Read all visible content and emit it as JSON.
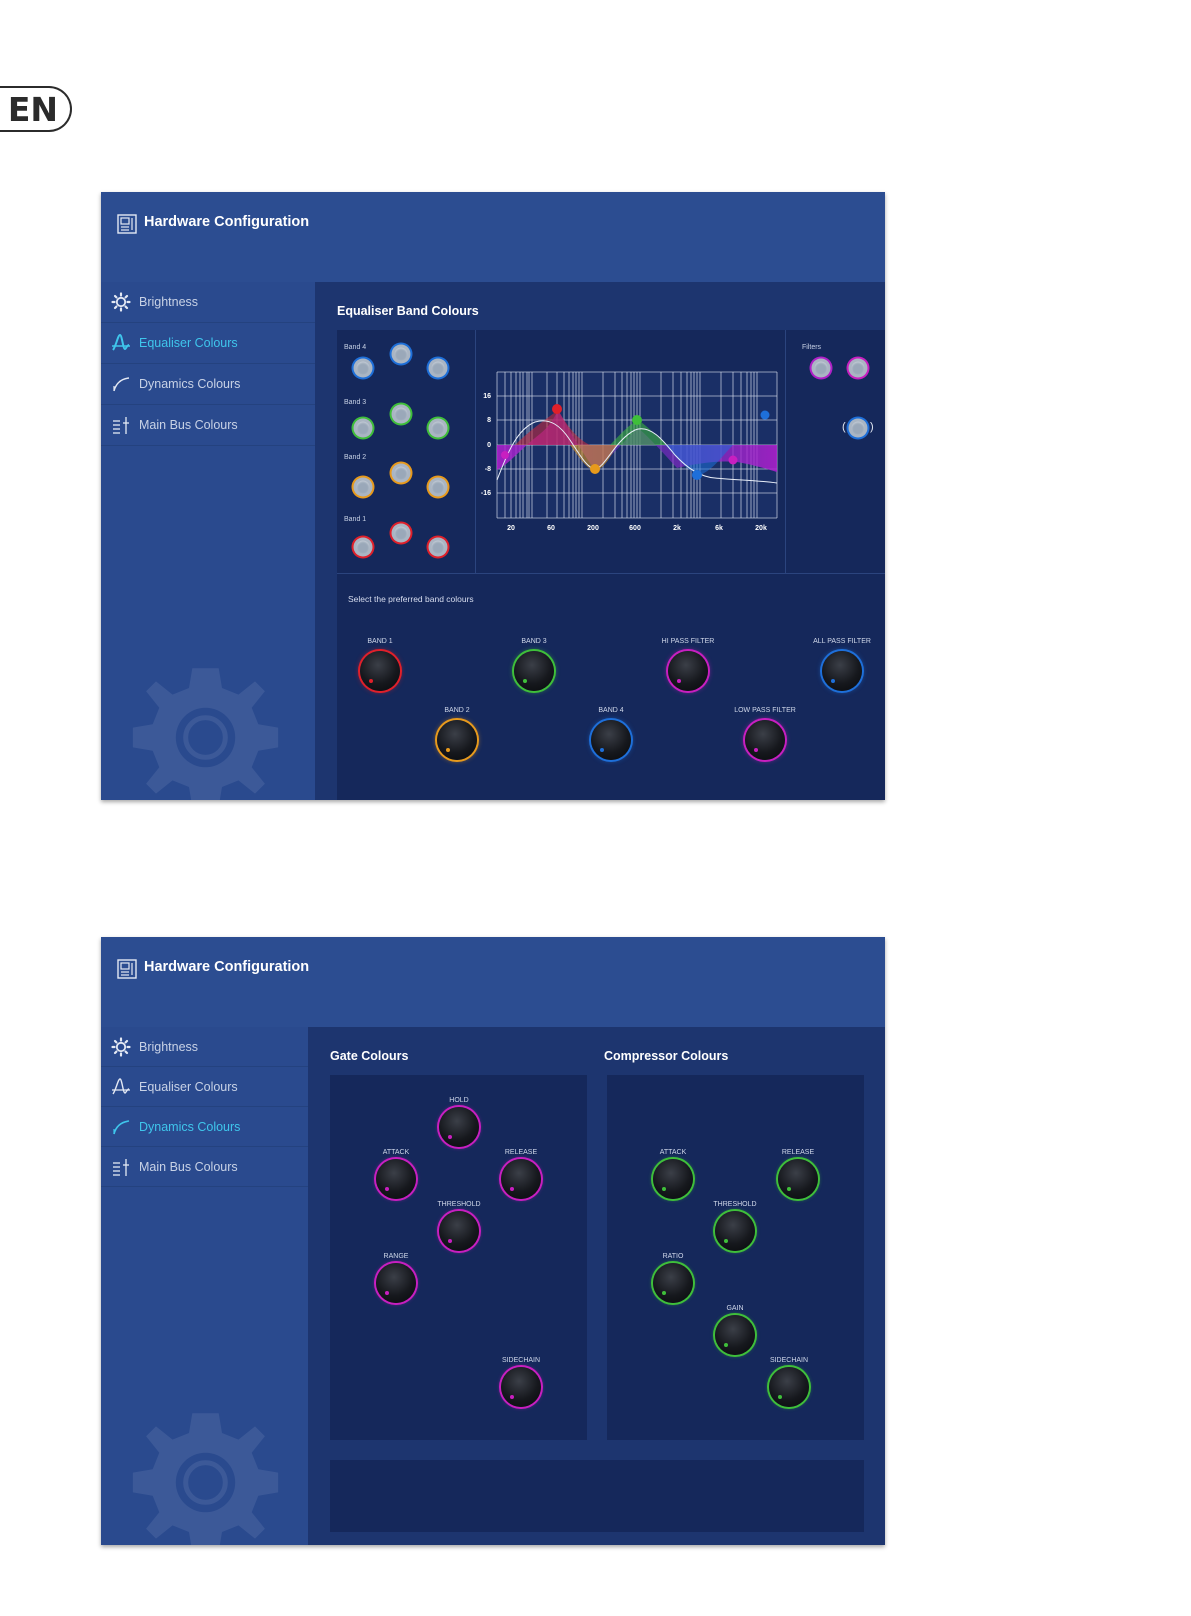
{
  "lang": "EN",
  "screen1": {
    "title": "Hardware Configuration",
    "sidebar": [
      {
        "label": "Brightness",
        "icon": "brightness-icon",
        "active": false
      },
      {
        "label": "Equaliser Colours",
        "icon": "equaliser-icon",
        "active": true
      },
      {
        "label": "Dynamics Colours",
        "icon": "dynamics-icon",
        "active": false
      },
      {
        "label": "Main Bus Colours",
        "icon": "main-bus-icon",
        "active": false
      }
    ],
    "section_title": "Equaliser Band Colours",
    "band_labels": [
      "Band 4",
      "Band 3",
      "Band 2",
      "Band 1"
    ],
    "band_swatch_colors": {
      "Band 4": "#1e6fd9",
      "Band 3": "#3fbf3a",
      "Band 2": "#e89a1c",
      "Band 1": "#e0202a"
    },
    "filters_label": "Filters",
    "filter_swatch_colors": [
      "#b020c8",
      "#c81fc0",
      "#1e6fd9"
    ],
    "eq_graph": {
      "y_ticks": [
        "16",
        "8",
        "0",
        "-8",
        "-16"
      ],
      "x_ticks": [
        "20",
        "60",
        "200",
        "600",
        "2k",
        "6k",
        "20k"
      ]
    },
    "chart_data": {
      "type": "line",
      "x_ticks": [
        "20",
        "60",
        "200",
        "600",
        "2k",
        "6k",
        "20k"
      ],
      "y_ticks": [
        "16",
        "8",
        "0",
        "-8",
        "-16"
      ],
      "ylim": [
        -16,
        16
      ],
      "nodes": [
        {
          "color": "#c81fc0",
          "x": "30",
          "y": -4
        },
        {
          "color": "#e0202a",
          "x": "100",
          "y": 11
        },
        {
          "color": "#e89a1c",
          "x": "250",
          "y": -8
        },
        {
          "color": "#3fbf3a",
          "x": "700",
          "y": 8
        },
        {
          "color": "#1e6fd9",
          "x": "4k",
          "y": -10
        },
        {
          "color": "#c81fc0",
          "x": "8k",
          "y": -5
        },
        {
          "color": "#1e6fd9",
          "x": "20k",
          "y": 9
        }
      ]
    },
    "hint": "Select the preferred band colours",
    "knobs": [
      {
        "label": "BAND 1",
        "color": "#e0202a"
      },
      {
        "label": "BAND 3",
        "color": "#3fbf3a"
      },
      {
        "label": "HI PASS FILTER",
        "color": "#c81fc0"
      },
      {
        "label": "ALL PASS FILTER",
        "color": "#1e6fd9"
      },
      {
        "label": "BAND 2",
        "color": "#e89a1c"
      },
      {
        "label": "BAND 4",
        "color": "#1e6fd9"
      },
      {
        "label": "LOW PASS FILTER",
        "color": "#c81fc0"
      }
    ]
  },
  "screen2": {
    "title": "Hardware Configuration",
    "sidebar": [
      {
        "label": "Brightness",
        "icon": "brightness-icon",
        "active": false
      },
      {
        "label": "Equaliser Colours",
        "icon": "equaliser-icon",
        "active": false
      },
      {
        "label": "Dynamics Colours",
        "icon": "dynamics-icon",
        "active": true
      },
      {
        "label": "Main Bus Colours",
        "icon": "main-bus-icon",
        "active": false
      }
    ],
    "gate_title": "Gate Colours",
    "compressor_title": "Compressor Colours",
    "gate_color": "#c81fc0",
    "compressor_color": "#3fbf3a",
    "gate_knobs": [
      "HOLD",
      "ATTACK",
      "RELEASE",
      "THRESHOLD",
      "RANGE",
      "SIDECHAIN"
    ],
    "compressor_knobs": [
      "ATTACK",
      "RELEASE",
      "THRESHOLD",
      "RATIO",
      "GAIN",
      "SIDECHAIN"
    ]
  }
}
